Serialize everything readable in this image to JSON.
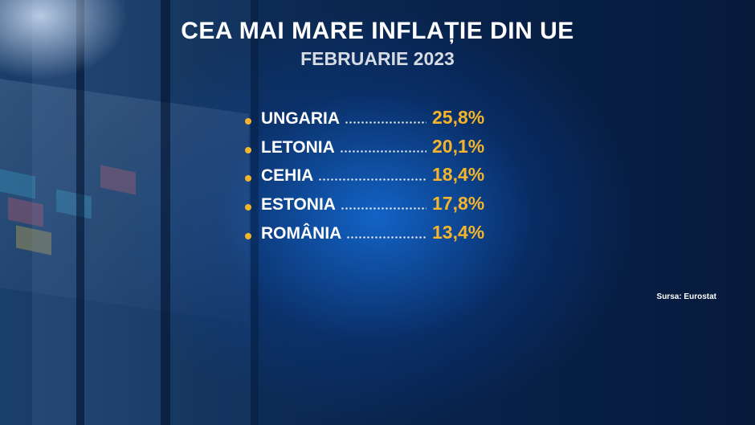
{
  "title": "CEA MAI MARE INFLAȚIE DIN UE",
  "subtitle": "FEBRUARIE 2023",
  "items": [
    {
      "country": "UNGARIA",
      "value": "25,8%"
    },
    {
      "country": "LETONIA",
      "value": "20,1%"
    },
    {
      "country": "CEHIA",
      "value": "18,4%"
    },
    {
      "country": "ESTONIA",
      "value": "17,8%"
    },
    {
      "country": "ROMÂNIA",
      "value": "13,4%"
    }
  ],
  "source": "Sursa: Eurostat"
}
